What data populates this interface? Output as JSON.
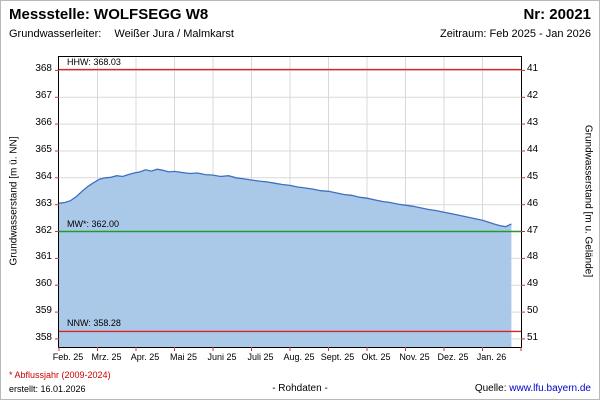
{
  "header": {
    "station_label": "Messstelle: WOLFSEGG W8",
    "number_label": "Nr: 20021",
    "aquifer_label": "Grundwasserleiter:",
    "aquifer_value": "Weißer Jura / Malmkarst",
    "period_label": "Zeitraum: Feb 2025 - Jan 2026"
  },
  "footer": {
    "note": "* Abflussjahr (2009-2024)",
    "created": "erstellt: 16.01.2026",
    "center": "- Rohdaten -",
    "source_label": "Quelle:",
    "source_link": "www.lfu.bayern.de"
  },
  "chart_data": {
    "type": "area",
    "title": "",
    "ylabel_left": "Grundwasserstand [m ü. NN]",
    "ylabel_right": "Grundwasserstand [m u. Gelände]",
    "x_tick_labels": [
      "Feb. 25",
      "Mrz. 25",
      "Apr. 25",
      "Mai 25",
      "Juni 25",
      "Juli 25",
      "Aug. 25",
      "Sept. 25",
      "Okt. 25",
      "Nov. 25",
      "Dez. 25",
      "Jan. 26"
    ],
    "y_ticks_left": [
      368,
      367,
      366,
      365,
      364,
      363,
      362,
      361,
      360,
      359,
      358
    ],
    "y_ticks_right": [
      41,
      42,
      43,
      44,
      45,
      46,
      47,
      48,
      49,
      50,
      51
    ],
    "ylim_left": [
      357.7,
      368.5
    ],
    "grid": true,
    "reference_lines": [
      {
        "name": "HHW",
        "label": "HHW: 368.03",
        "value": 368.03,
        "color": "#dd2222"
      },
      {
        "name": "MW",
        "label": "MW*: 362.00",
        "value": 362.0,
        "color": "#1f9a2f"
      },
      {
        "name": "NNW",
        "label": "NNW: 358.28",
        "value": 358.28,
        "color": "#dd2222"
      }
    ],
    "series": [
      {
        "name": "Grundwasserstand",
        "x": [
          0,
          0.15,
          0.3,
          0.45,
          0.6,
          0.75,
          0.9,
          1.05,
          1.2,
          1.35,
          1.5,
          1.65,
          1.8,
          1.95,
          2.1,
          2.25,
          2.4,
          2.55,
          2.7,
          2.85,
          3.0,
          3.2,
          3.4,
          3.6,
          3.8,
          4.0,
          4.2,
          4.4,
          4.6,
          4.8,
          5.0,
          5.2,
          5.4,
          5.6,
          5.8,
          6.0,
          6.2,
          6.4,
          6.6,
          6.8,
          7.0,
          7.2,
          7.4,
          7.6,
          7.8,
          8.0,
          8.2,
          8.4,
          8.6,
          8.8,
          9.0,
          9.2,
          9.4,
          9.6,
          9.8,
          10.0,
          10.2,
          10.4,
          10.6,
          10.8,
          11.0,
          11.15,
          11.3,
          11.45,
          11.6,
          11.75
        ],
        "values": [
          363.05,
          363.08,
          363.15,
          363.3,
          363.5,
          363.68,
          363.82,
          363.95,
          364.0,
          364.02,
          364.08,
          364.05,
          364.12,
          364.18,
          364.22,
          364.3,
          364.25,
          364.32,
          364.28,
          364.22,
          364.24,
          364.2,
          364.16,
          364.18,
          364.12,
          364.1,
          364.05,
          364.08,
          364.0,
          363.96,
          363.92,
          363.88,
          363.85,
          363.8,
          363.75,
          363.72,
          363.66,
          363.62,
          363.58,
          363.52,
          363.5,
          363.44,
          363.38,
          363.35,
          363.28,
          363.24,
          363.18,
          363.12,
          363.08,
          363.02,
          362.98,
          362.94,
          362.88,
          362.82,
          362.78,
          362.72,
          362.66,
          362.6,
          362.54,
          362.48,
          362.42,
          362.35,
          362.28,
          362.22,
          362.18,
          362.28
        ]
      }
    ],
    "colors": {
      "area": "#aac9e9",
      "line": "#3f6fc0",
      "grid": "#d9d9d9",
      "tick": "#cc3333",
      "border": "#000000"
    }
  }
}
